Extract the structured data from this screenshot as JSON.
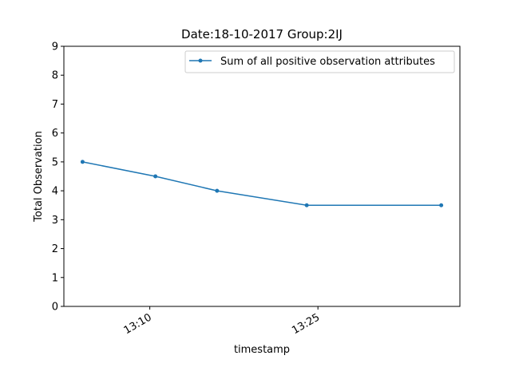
{
  "chart_data": {
    "type": "line",
    "title": "Date:18-10-2017  Group:2IJ",
    "xlabel": "timestamp",
    "ylabel": "Total Observation",
    "ylim": [
      0,
      9
    ],
    "yticks": [
      0,
      1,
      2,
      3,
      4,
      5,
      6,
      7,
      8,
      9
    ],
    "xlim": [
      "13:02:20",
      "13:37:40"
    ],
    "xticks": [
      {
        "value": "13:10",
        "label": "13:10"
      },
      {
        "value": "13:25",
        "label": "13:25"
      }
    ],
    "grid": false,
    "legend_position": "top-right",
    "series": [
      {
        "name": "Sum of all positive observation attributes",
        "color": "#1f77b4",
        "marker": "circle",
        "points": [
          {
            "x": "13:04:00",
            "y": 5.0
          },
          {
            "x": "13:10:30",
            "y": 4.5
          },
          {
            "x": "13:16:00",
            "y": 4.0
          },
          {
            "x": "13:24:00",
            "y": 3.5
          },
          {
            "x": "13:36:00",
            "y": 3.5
          }
        ]
      }
    ]
  }
}
